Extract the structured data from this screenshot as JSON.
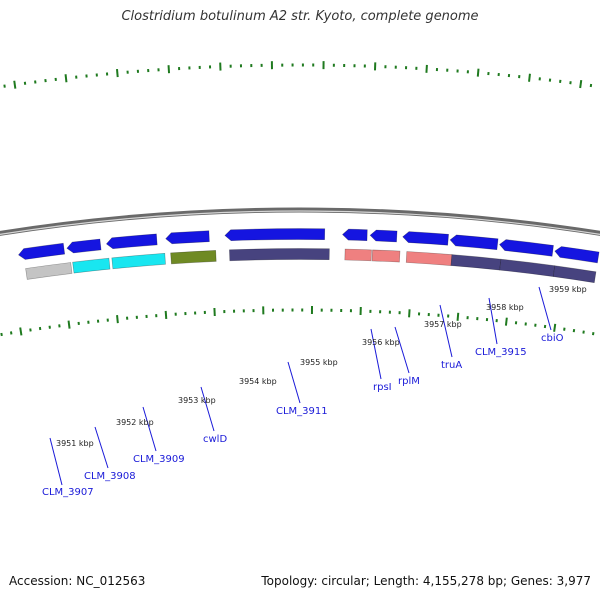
{
  "title": "Clostridium botulinum A2 str. Kyoto, complete genome",
  "footer": {
    "accession": "Accession: NC_012563",
    "summary": "Topology: circular; Length: 4,155,278 bp; Genes: 3,977"
  },
  "colors": {
    "backbone": "#8a8a8a",
    "ticks": "#1f7a1f",
    "forward_gene": "#1515e0",
    "cds_dark": "#47437f",
    "cds_cyan": "#19e6f0",
    "cds_olive": "#6f8a24",
    "cds_gray": "#c4c4c4",
    "rna_pink": "#ef8080",
    "label_blue": "#1a1ad8"
  },
  "kbp_labels": [
    "3951 kbp",
    "3952 kbp",
    "3953 kbp",
    "3954 kbp",
    "3955 kbp",
    "3956 kbp",
    "3957 kbp",
    "3958 kbp",
    "3959 kbp"
  ],
  "gene_labels": [
    "CLM_3907",
    "CLM_3908",
    "CLM_3909",
    "cwlD",
    "CLM_3911",
    "rpsI",
    "rplM",
    "truA",
    "CLM_3915",
    "cbiO"
  ]
}
